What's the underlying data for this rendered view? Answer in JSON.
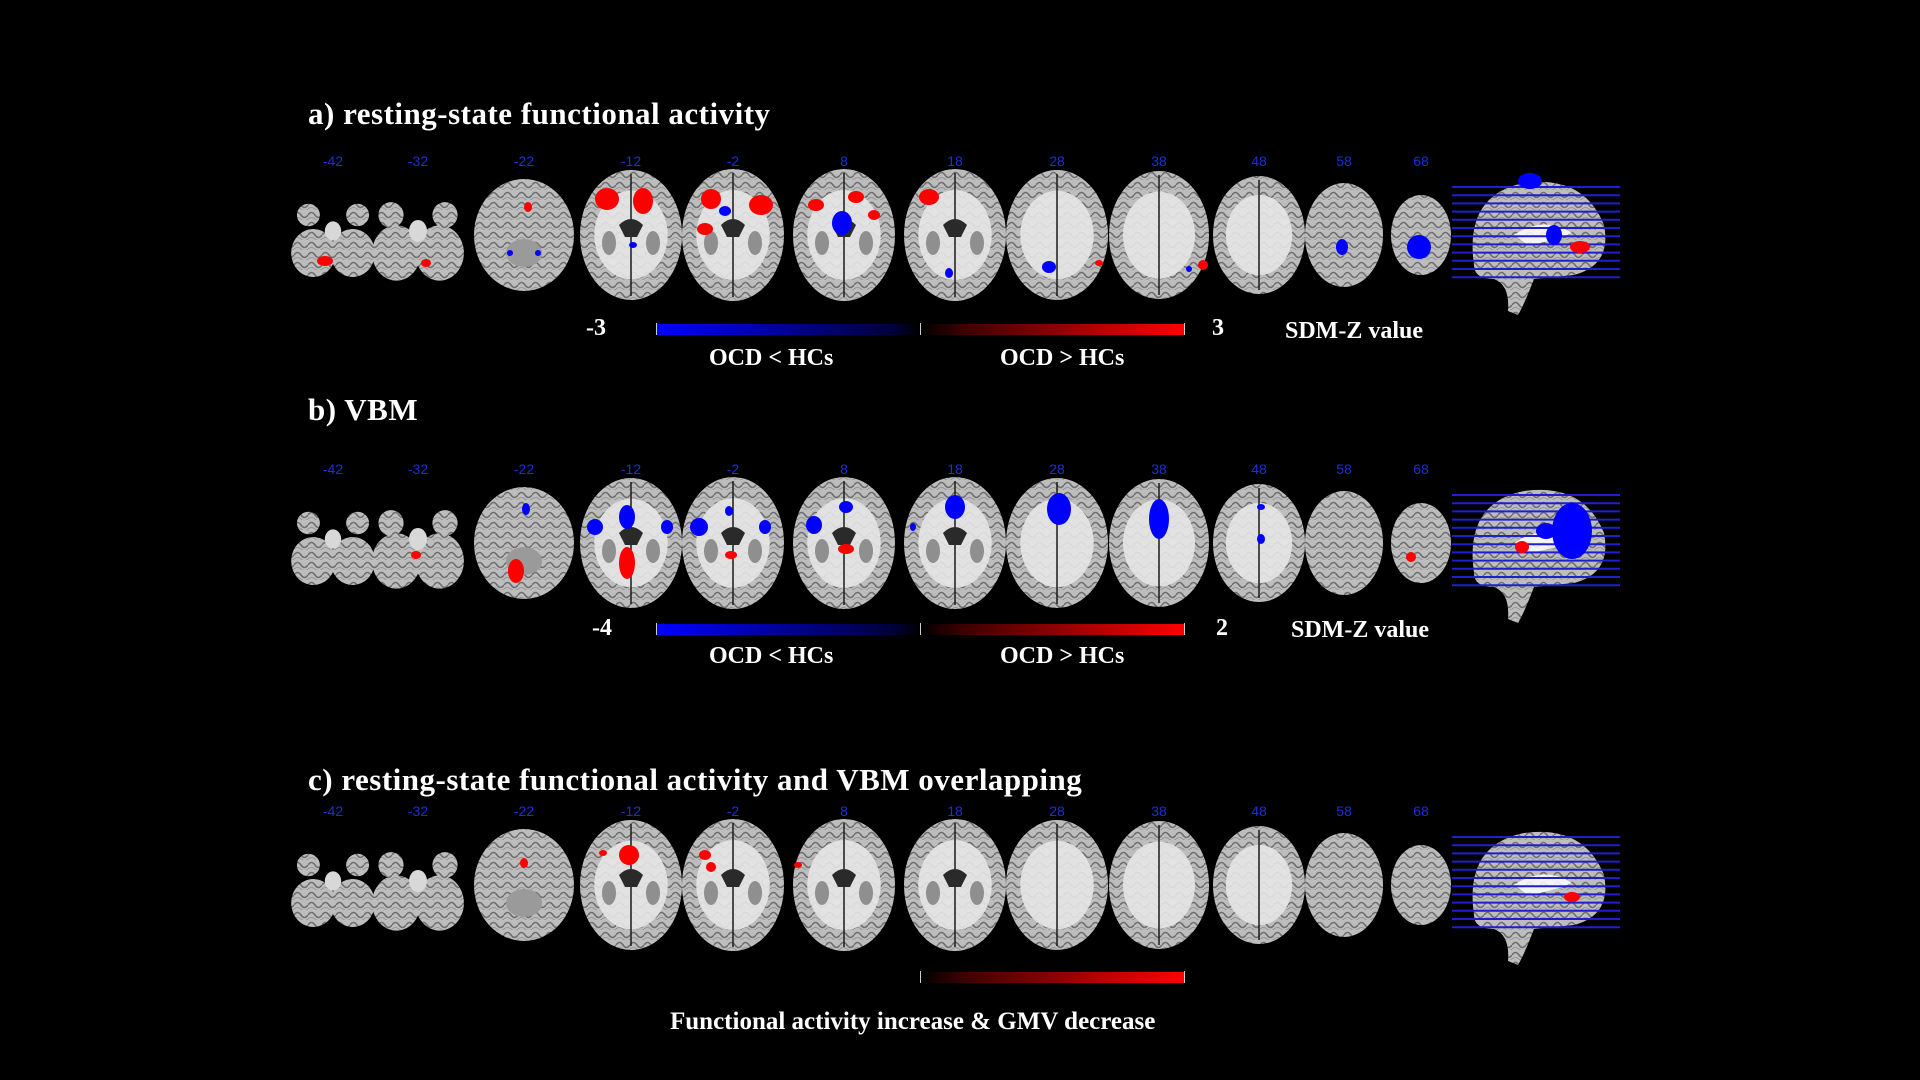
{
  "slice_labels": [
    "-42",
    "-32",
    "-22",
    "-12",
    "-2",
    "8",
    "18",
    "28",
    "38",
    "48",
    "58",
    "68"
  ],
  "colors": {
    "neg": "#0000ff",
    "pos": "#ff0000",
    "label": "#1c2fd6",
    "bg": "#000000"
  },
  "panels": [
    {
      "title": "a) resting-state functional activity",
      "scale_min": "-3",
      "scale_max": "3",
      "scale_label": "SDM-Z value",
      "neg_label": "OCD < HCs",
      "pos_label": "OCD > HCs"
    },
    {
      "title": "b) VBM",
      "scale_min": "-4",
      "scale_max": "2",
      "scale_label": "SDM-Z value",
      "neg_label": "OCD < HCs",
      "pos_label": "OCD > HCs"
    },
    {
      "title": "c) resting-state functional activity and VBM overlapping",
      "caption": "Functional activity increase & GMV decrease"
    }
  ]
}
